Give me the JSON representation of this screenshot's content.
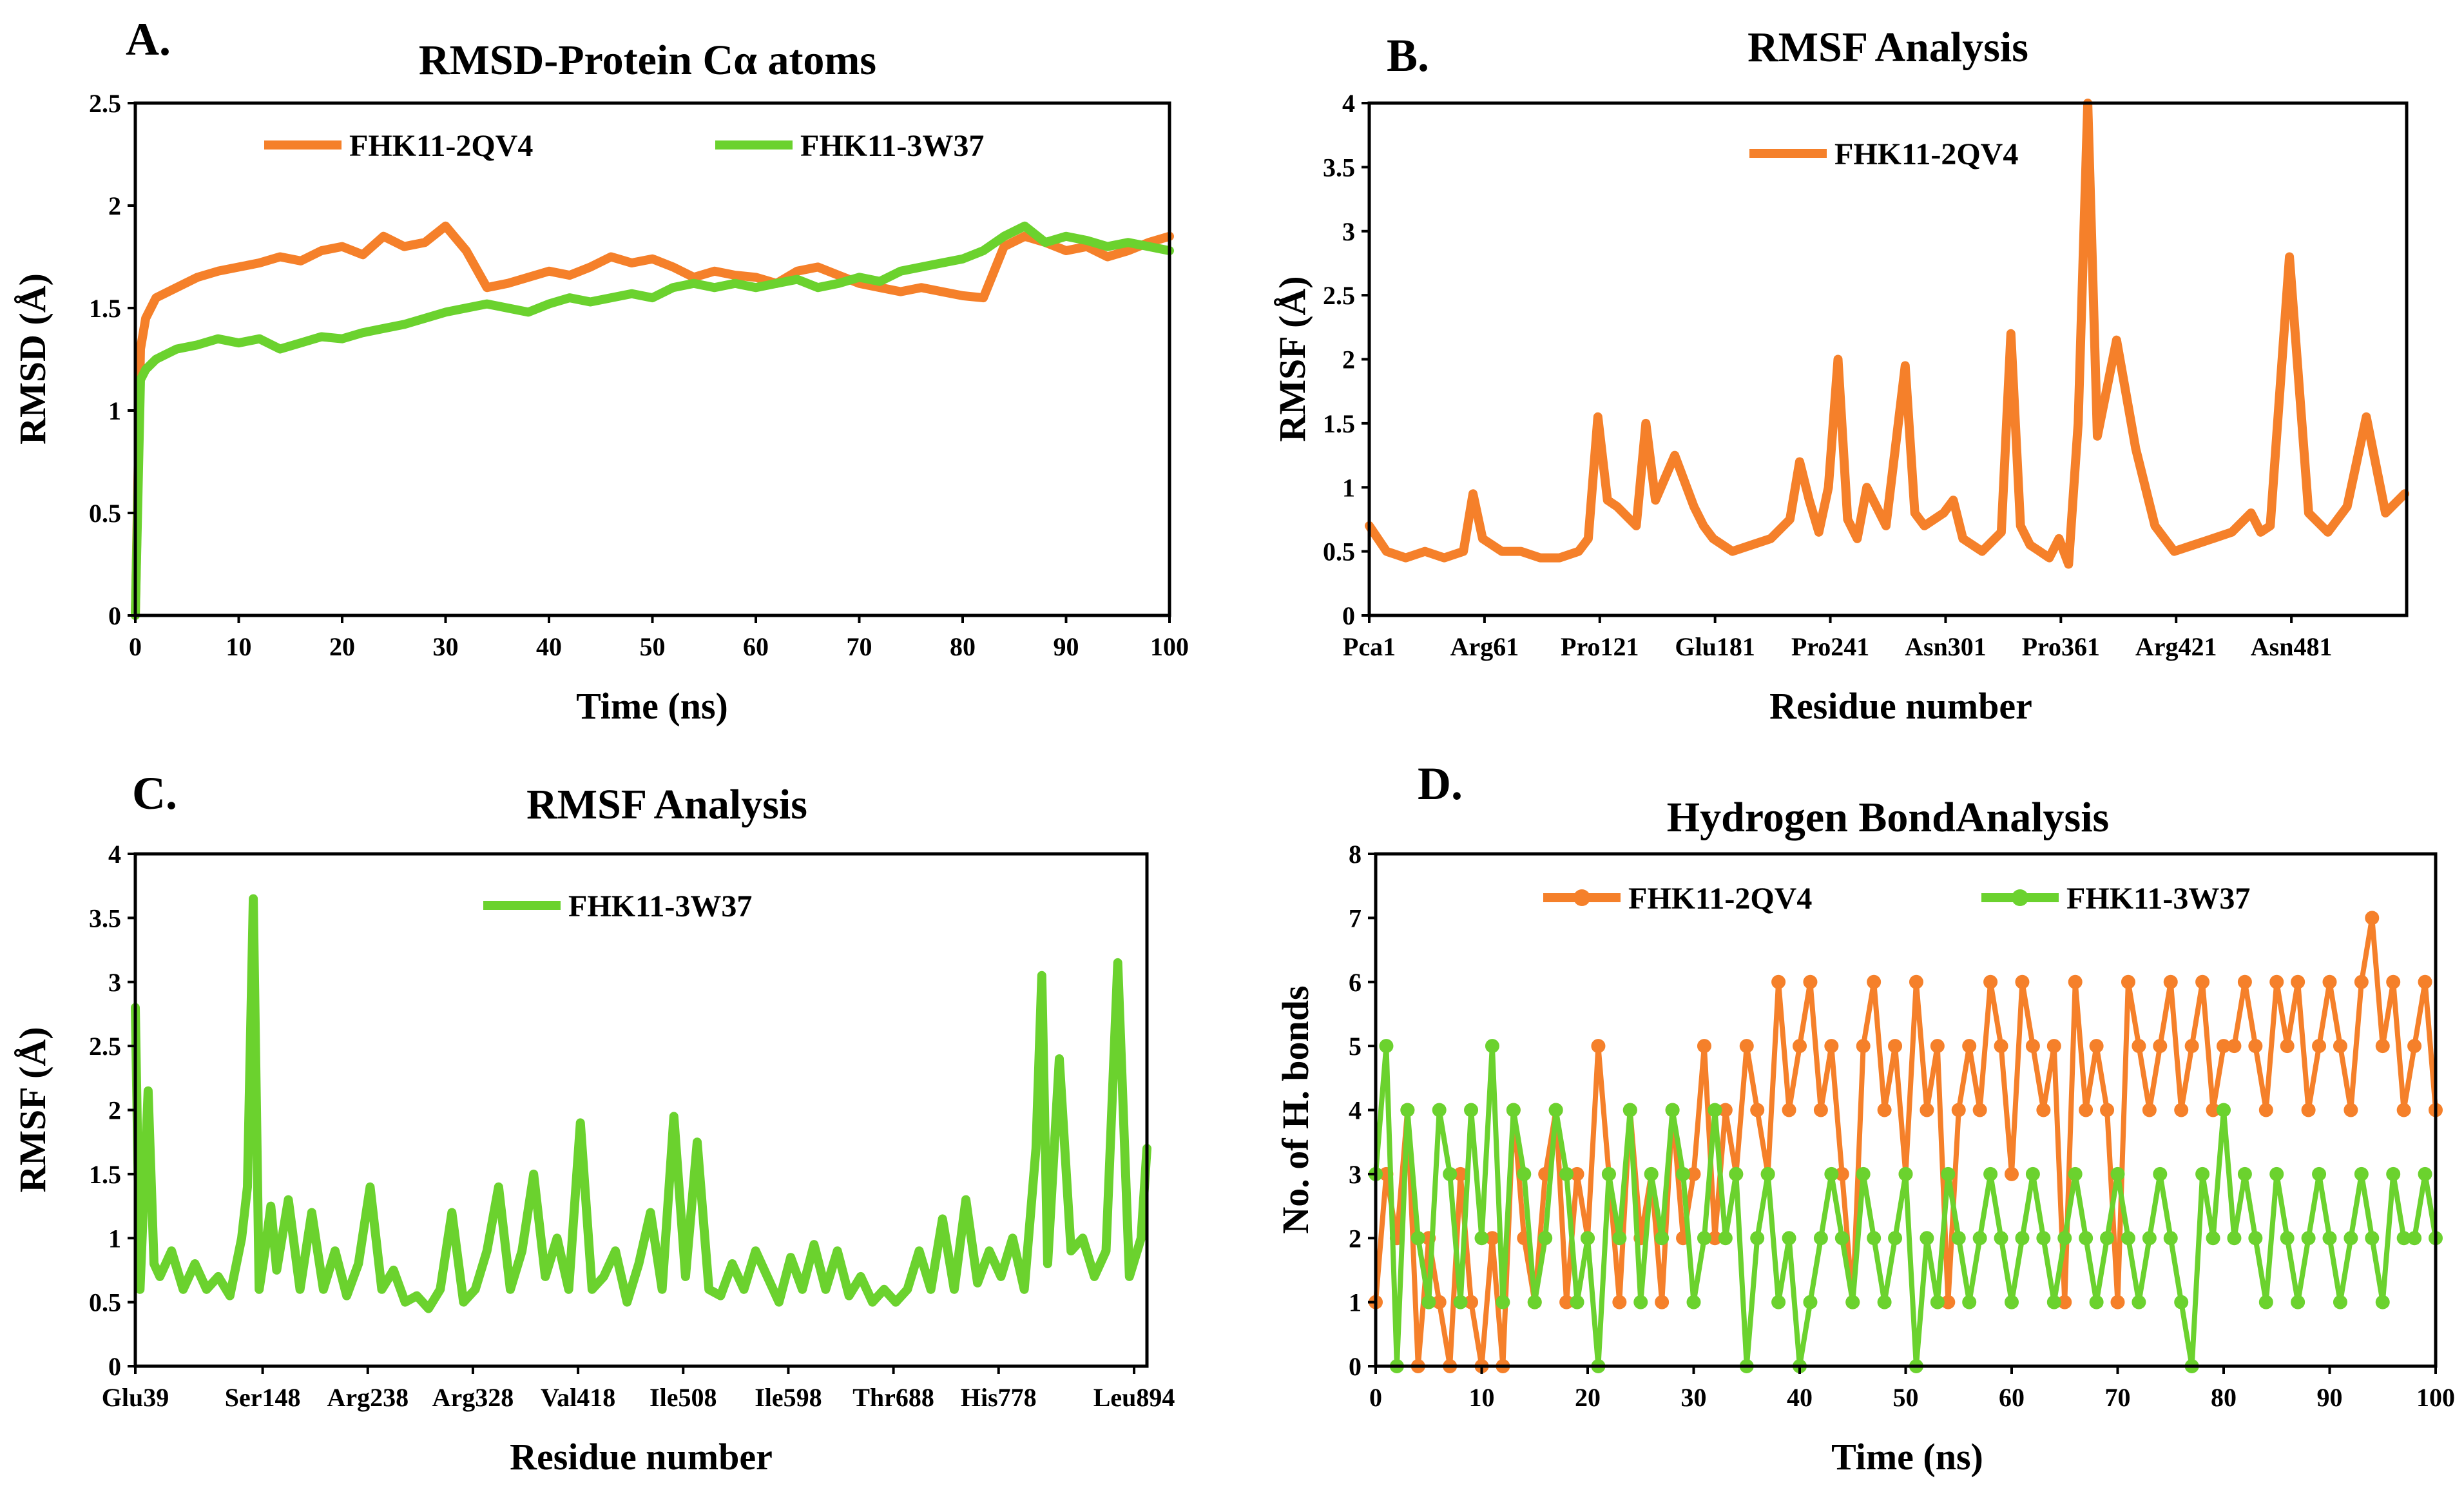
{
  "colors": {
    "orange": "#f5802a",
    "green": "#6bd22e",
    "axis": "#000000"
  },
  "chart_data": [
    {
      "panel": "A.",
      "type": "line",
      "title": "RMSD-Protein Cα atoms",
      "xlabel": "Time (ns)",
      "ylabel": "RMSD (Å)",
      "xlim": [
        0,
        100
      ],
      "ylim": [
        0,
        2.5
      ],
      "xticks": [
        0,
        10,
        20,
        30,
        40,
        50,
        60,
        70,
        80,
        90,
        100
      ],
      "yticks": [
        0,
        0.5,
        1,
        1.5,
        2,
        2.5
      ],
      "legend_position": "top",
      "grid": false,
      "series": [
        {
          "name": "FHK11-2QV4",
          "color": "#f5802a",
          "x": [
            0,
            0.5,
            1,
            2,
            4,
            6,
            8,
            10,
            12,
            14,
            16,
            18,
            20,
            22,
            24,
            26,
            28,
            30,
            32,
            34,
            36,
            38,
            40,
            42,
            44,
            46,
            48,
            50,
            52,
            54,
            56,
            58,
            60,
            62,
            64,
            66,
            68,
            70,
            72,
            74,
            76,
            78,
            80,
            82,
            84,
            86,
            88,
            90,
            92,
            94,
            96,
            98,
            100
          ],
          "y": [
            0,
            1.3,
            1.45,
            1.55,
            1.6,
            1.65,
            1.68,
            1.7,
            1.72,
            1.75,
            1.73,
            1.78,
            1.8,
            1.76,
            1.85,
            1.8,
            1.82,
            1.9,
            1.78,
            1.6,
            1.62,
            1.65,
            1.68,
            1.66,
            1.7,
            1.75,
            1.72,
            1.74,
            1.7,
            1.65,
            1.68,
            1.66,
            1.65,
            1.62,
            1.68,
            1.7,
            1.66,
            1.62,
            1.6,
            1.58,
            1.6,
            1.58,
            1.56,
            1.55,
            1.8,
            1.85,
            1.82,
            1.78,
            1.8,
            1.75,
            1.78,
            1.82,
            1.85
          ]
        },
        {
          "name": "FHK11-3W37",
          "color": "#6bd22e",
          "x": [
            0,
            0.5,
            1,
            2,
            4,
            6,
            8,
            10,
            12,
            14,
            16,
            18,
            20,
            22,
            24,
            26,
            28,
            30,
            32,
            34,
            36,
            38,
            40,
            42,
            44,
            46,
            48,
            50,
            52,
            54,
            56,
            58,
            60,
            62,
            64,
            66,
            68,
            70,
            72,
            74,
            76,
            78,
            80,
            82,
            84,
            86,
            88,
            90,
            92,
            94,
            96,
            98,
            100
          ],
          "y": [
            0,
            1.15,
            1.2,
            1.25,
            1.3,
            1.32,
            1.35,
            1.33,
            1.35,
            1.3,
            1.33,
            1.36,
            1.35,
            1.38,
            1.4,
            1.42,
            1.45,
            1.48,
            1.5,
            1.52,
            1.5,
            1.48,
            1.52,
            1.55,
            1.53,
            1.55,
            1.57,
            1.55,
            1.6,
            1.62,
            1.6,
            1.62,
            1.6,
            1.62,
            1.64,
            1.6,
            1.62,
            1.65,
            1.63,
            1.68,
            1.7,
            1.72,
            1.74,
            1.78,
            1.85,
            1.9,
            1.82,
            1.85,
            1.83,
            1.8,
            1.82,
            1.8,
            1.78
          ]
        }
      ]
    },
    {
      "panel": "B.",
      "type": "line",
      "title": "RMSF Analysis",
      "xlabel": "Residue number",
      "ylabel": "RMSF (Å)",
      "ylim": [
        0,
        4
      ],
      "yticks": [
        0,
        0.5,
        1,
        1.5,
        2,
        2.5,
        3,
        3.5,
        4
      ],
      "categories": [
        "Pca1",
        "Arg61",
        "Pro121",
        "Glu181",
        "Pro241",
        "Asn301",
        "Pro361",
        "Arg421",
        "Asn481"
      ],
      "category_index": [
        1,
        61,
        121,
        181,
        241,
        301,
        361,
        421,
        481
      ],
      "xlim": [
        1,
        541
      ],
      "legend_position": "top",
      "grid": false,
      "series": [
        {
          "name": "FHK11-2QV4",
          "color": "#f5802a",
          "x": [
            1,
            10,
            20,
            30,
            40,
            50,
            55,
            60,
            65,
            70,
            80,
            90,
            100,
            110,
            115,
            120,
            125,
            130,
            140,
            145,
            150,
            160,
            170,
            175,
            180,
            190,
            200,
            210,
            220,
            225,
            230,
            235,
            240,
            245,
            250,
            255,
            260,
            270,
            280,
            285,
            290,
            300,
            305,
            310,
            320,
            330,
            335,
            340,
            345,
            350,
            355,
            360,
            365,
            370,
            375,
            380,
            390,
            400,
            410,
            420,
            430,
            440,
            450,
            460,
            465,
            470,
            480,
            490,
            500,
            510,
            520,
            530,
            540
          ],
          "y": [
            0.7,
            0.5,
            0.45,
            0.5,
            0.45,
            0.5,
            0.95,
            0.6,
            0.55,
            0.5,
            0.5,
            0.45,
            0.45,
            0.5,
            0.6,
            1.55,
            0.9,
            0.85,
            0.7,
            1.5,
            0.9,
            1.25,
            0.85,
            0.7,
            0.6,
            0.5,
            0.55,
            0.6,
            0.75,
            1.2,
            0.9,
            0.65,
            1.0,
            2.0,
            0.75,
            0.6,
            1.0,
            0.7,
            1.95,
            0.8,
            0.7,
            0.8,
            0.9,
            0.6,
            0.5,
            0.65,
            2.2,
            0.7,
            0.55,
            0.5,
            0.45,
            0.6,
            0.4,
            1.5,
            4.0,
            1.4,
            2.15,
            1.3,
            0.7,
            0.5,
            0.55,
            0.6,
            0.65,
            0.8,
            0.65,
            0.7,
            2.8,
            0.8,
            0.65,
            0.85,
            1.55,
            0.8,
            0.95
          ]
        }
      ]
    },
    {
      "panel": "C.",
      "type": "line",
      "title": "RMSF Analysis",
      "xlabel": "Residue number",
      "ylabel": "RMSF (Å)",
      "ylim": [
        0,
        4
      ],
      "yticks": [
        0,
        0.5,
        1,
        1.5,
        2,
        2.5,
        3,
        3.5,
        4
      ],
      "categories": [
        "Glu39",
        "Ser148",
        "Arg238",
        "Arg328",
        "Val418",
        "Ile508",
        "Ile598",
        "Thr688",
        "His778",
        "Leu894"
      ],
      "category_index": [
        39,
        148,
        238,
        328,
        418,
        508,
        598,
        688,
        778,
        894
      ],
      "xlim": [
        39,
        905
      ],
      "legend_position": "top",
      "grid": false,
      "series": [
        {
          "name": "FHK11-3W37",
          "color": "#6bd22e",
          "x": [
            39,
            43,
            50,
            55,
            60,
            70,
            80,
            90,
            100,
            110,
            120,
            130,
            135,
            140,
            145,
            150,
            155,
            160,
            170,
            180,
            190,
            200,
            210,
            220,
            230,
            240,
            250,
            260,
            270,
            280,
            290,
            300,
            310,
            320,
            330,
            340,
            350,
            360,
            370,
            380,
            390,
            400,
            410,
            420,
            430,
            440,
            450,
            460,
            470,
            480,
            490,
            500,
            510,
            520,
            530,
            540,
            550,
            560,
            570,
            580,
            590,
            600,
            610,
            620,
            630,
            640,
            650,
            660,
            670,
            680,
            690,
            700,
            710,
            720,
            730,
            740,
            750,
            760,
            770,
            780,
            790,
            800,
            810,
            815,
            820,
            830,
            840,
            850,
            860,
            870,
            880,
            890,
            900,
            905
          ],
          "y": [
            2.8,
            0.6,
            2.15,
            0.8,
            0.7,
            0.9,
            0.6,
            0.8,
            0.6,
            0.7,
            0.55,
            1.0,
            1.4,
            3.65,
            0.6,
            0.9,
            1.25,
            0.75,
            1.3,
            0.6,
            1.2,
            0.6,
            0.9,
            0.55,
            0.8,
            1.4,
            0.6,
            0.75,
            0.5,
            0.55,
            0.45,
            0.6,
            1.2,
            0.5,
            0.6,
            0.9,
            1.4,
            0.6,
            0.9,
            1.5,
            0.7,
            1.0,
            0.6,
            1.9,
            0.6,
            0.7,
            0.9,
            0.5,
            0.8,
            1.2,
            0.6,
            1.95,
            0.7,
            1.75,
            0.6,
            0.55,
            0.8,
            0.6,
            0.9,
            0.7,
            0.5,
            0.85,
            0.6,
            0.95,
            0.6,
            0.9,
            0.55,
            0.7,
            0.5,
            0.6,
            0.5,
            0.6,
            0.9,
            0.6,
            1.15,
            0.6,
            1.3,
            0.65,
            0.9,
            0.7,
            1.0,
            0.6,
            1.7,
            3.05,
            0.8,
            2.4,
            0.9,
            1.0,
            0.7,
            0.9,
            3.15,
            0.7,
            1.0,
            1.7
          ]
        }
      ]
    },
    {
      "panel": "D.",
      "type": "line",
      "title": "Hydrogen  BondAnalysis",
      "xlabel": "Time (ns)",
      "ylabel": "No. of  H. bonds",
      "xlim": [
        0,
        100
      ],
      "ylim": [
        0,
        8
      ],
      "xticks": [
        0,
        10,
        20,
        30,
        40,
        50,
        60,
        70,
        80,
        90,
        100
      ],
      "yticks": [
        0,
        1,
        2,
        3,
        4,
        5,
        6,
        7,
        8
      ],
      "legend_position": "top",
      "grid": false,
      "markers": "circle",
      "series": [
        {
          "name": "FHK11-2QV4",
          "color": "#f5802a",
          "x": [
            0,
            1,
            2,
            3,
            4,
            5,
            6,
            7,
            8,
            9,
            10,
            11,
            12,
            13,
            14,
            15,
            16,
            17,
            18,
            19,
            20,
            21,
            22,
            23,
            24,
            25,
            26,
            27,
            28,
            29,
            30,
            31,
            32,
            33,
            34,
            35,
            36,
            37,
            38,
            39,
            40,
            41,
            42,
            43,
            44,
            45,
            46,
            47,
            48,
            49,
            50,
            51,
            52,
            53,
            54,
            55,
            56,
            57,
            58,
            59,
            60,
            61,
            62,
            63,
            64,
            65,
            66,
            67,
            68,
            69,
            70,
            71,
            72,
            73,
            74,
            75,
            76,
            77,
            78,
            79,
            80,
            81,
            82,
            83,
            84,
            85,
            86,
            87,
            88,
            89,
            90,
            91,
            92,
            93,
            94,
            95,
            96,
            97,
            98,
            99,
            100
          ],
          "y": [
            1,
            3,
            2,
            4,
            0,
            2,
            1,
            0,
            3,
            1,
            0,
            2,
            0,
            4,
            2,
            1,
            3,
            4,
            1,
            3,
            2,
            5,
            3,
            1,
            4,
            2,
            3,
            1,
            4,
            2,
            3,
            5,
            2,
            4,
            3,
            5,
            4,
            3,
            6,
            4,
            5,
            6,
            4,
            5,
            3,
            1,
            5,
            6,
            4,
            5,
            3,
            6,
            4,
            5,
            1,
            4,
            5,
            4,
            6,
            5,
            3,
            6,
            5,
            4,
            5,
            1,
            6,
            4,
            5,
            4,
            1,
            6,
            5,
            4,
            5,
            6,
            4,
            5,
            6,
            4,
            5,
            5,
            6,
            5,
            4,
            6,
            5,
            6,
            4,
            5,
            6,
            5,
            4,
            6,
            7,
            5,
            6,
            4,
            5,
            6,
            4
          ]
        },
        {
          "name": "FHK11-3W37",
          "color": "#6bd22e",
          "x": [
            0,
            1,
            2,
            3,
            4,
            5,
            6,
            7,
            8,
            9,
            10,
            11,
            12,
            13,
            14,
            15,
            16,
            17,
            18,
            19,
            20,
            21,
            22,
            23,
            24,
            25,
            26,
            27,
            28,
            29,
            30,
            31,
            32,
            33,
            34,
            35,
            36,
            37,
            38,
            39,
            40,
            41,
            42,
            43,
            44,
            45,
            46,
            47,
            48,
            49,
            50,
            51,
            52,
            53,
            54,
            55,
            56,
            57,
            58,
            59,
            60,
            61,
            62,
            63,
            64,
            65,
            66,
            67,
            68,
            69,
            70,
            71,
            72,
            73,
            74,
            75,
            76,
            77,
            78,
            79,
            80,
            81,
            82,
            83,
            84,
            85,
            86,
            87,
            88,
            89,
            90,
            91,
            92,
            93,
            94,
            95,
            96,
            97,
            98,
            99,
            100
          ],
          "y": [
            3,
            5,
            0,
            4,
            2,
            1,
            4,
            3,
            1,
            4,
            2,
            5,
            1,
            4,
            3,
            1,
            2,
            4,
            3,
            1,
            2,
            0,
            3,
            2,
            4,
            1,
            3,
            2,
            4,
            3,
            1,
            2,
            4,
            2,
            3,
            0,
            2,
            3,
            1,
            2,
            0,
            1,
            2,
            3,
            2,
            1,
            3,
            2,
            1,
            2,
            3,
            0,
            2,
            1,
            3,
            2,
            1,
            2,
            3,
            2,
            1,
            2,
            3,
            2,
            1,
            2,
            3,
            2,
            1,
            2,
            3,
            2,
            1,
            2,
            3,
            2,
            1,
            0,
            3,
            2,
            4,
            2,
            3,
            2,
            1,
            3,
            2,
            1,
            2,
            3,
            2,
            1,
            2,
            3,
            2,
            1,
            3,
            2,
            2,
            3,
            2
          ]
        }
      ]
    }
  ]
}
